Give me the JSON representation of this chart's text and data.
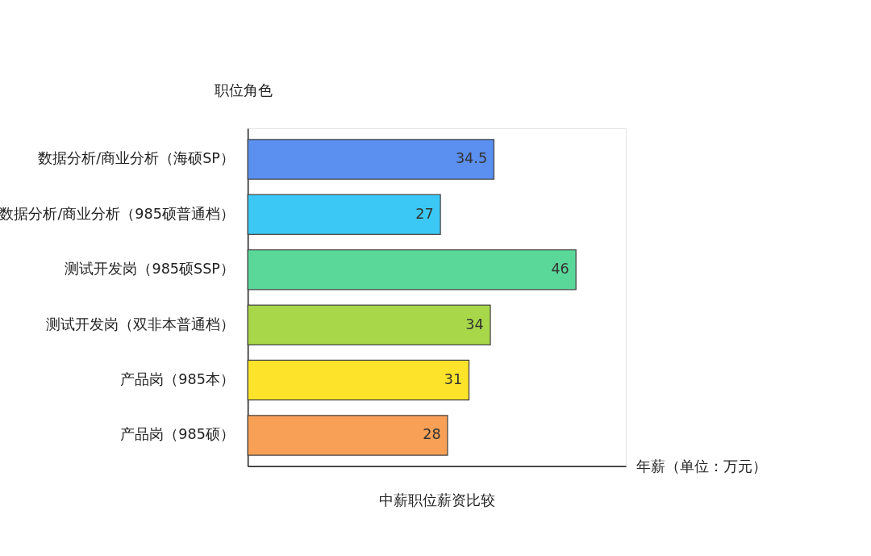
{
  "chart_data": {
    "type": "bar",
    "orientation": "horizontal",
    "title": "中薪职位薪资比较",
    "ylabel": "职位角色",
    "xlabel": "年薪（单位：万元）",
    "categories": [
      "数据分析/商业分析（海硕SP）",
      "数据分析/商业分析（985硕普通档）",
      "测试开发岗（985硕SSP）",
      "测试开发岗（双非本普通档）",
      "产品岗（985本）",
      "产品岗（985硕）"
    ],
    "values": [
      34.5,
      27,
      46,
      34,
      31,
      28
    ],
    "colors": [
      "#5b8ff0",
      "#3cc8f5",
      "#5ad89a",
      "#a8d84a",
      "#fde32a",
      "#f8a055"
    ],
    "xlim": [
      0,
      53
    ],
    "data_labels": true,
    "tick_labels": "y",
    "grid": false
  }
}
